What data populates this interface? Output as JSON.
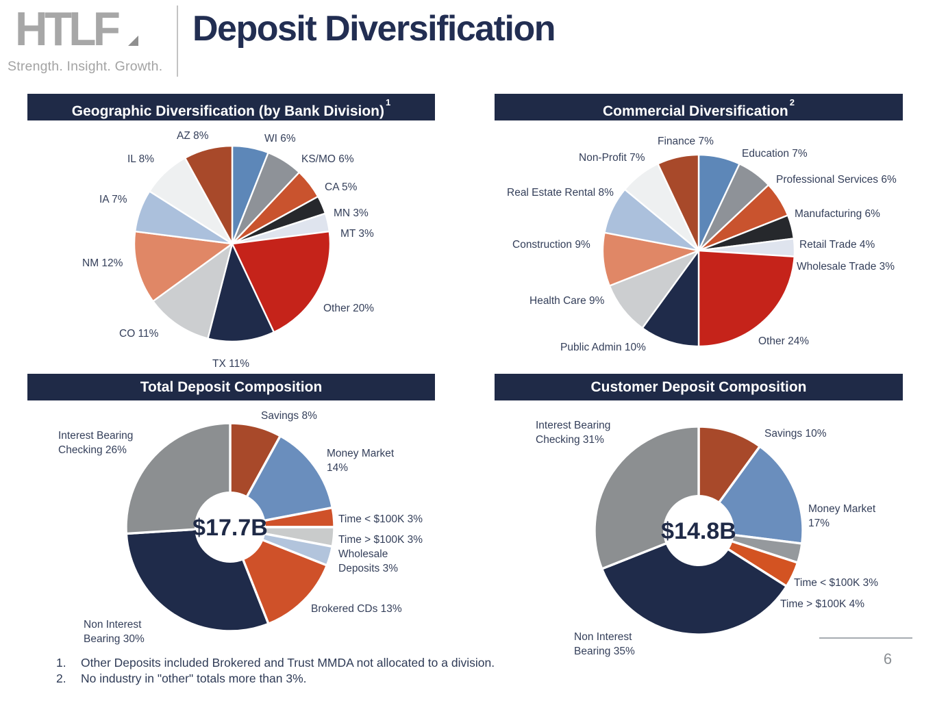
{
  "page": {
    "page_number": "6"
  },
  "header": {
    "logo_text": "HTLF",
    "tagline": "Strength. Insight. Growth.",
    "title": "Deposit Diversification"
  },
  "colors": {
    "panel_bar": "#1f2a47",
    "title_navy": "#222e52",
    "label_text": "#333e59",
    "slice_white_gap": "#ffffff"
  },
  "chart_data": [
    {
      "id": "geographic",
      "type": "pie",
      "donut": false,
      "title": "Geographic Diversification (by Bank Division)",
      "footnote_ref": "1",
      "slices": [
        {
          "label": "WI",
          "value": 6,
          "display": [
            "WI 6%"
          ],
          "color": "#5d87b8"
        },
        {
          "label": "KS/MO",
          "value": 6,
          "display": [
            "KS/MO 6%"
          ],
          "color": "#8e9298"
        },
        {
          "label": "CA",
          "value": 5,
          "display": [
            "CA 5%"
          ],
          "color": "#c9532e"
        },
        {
          "label": "MN",
          "value": 3,
          "display": [
            "MN 3%"
          ],
          "color": "#26282c"
        },
        {
          "label": "MT",
          "value": 3,
          "display": [
            "MT 3%"
          ],
          "color": "#dfe4ee"
        },
        {
          "label": "Other",
          "value": 20,
          "display": [
            "Other 20%"
          ],
          "color": "#c5231a"
        },
        {
          "label": "TX",
          "value": 11,
          "display": [
            "TX 11%"
          ],
          "color": "#1f2b4a"
        },
        {
          "label": "CO",
          "value": 11,
          "display": [
            "CO 11%"
          ],
          "color": "#ccced0"
        },
        {
          "label": "NM",
          "value": 12,
          "display": [
            "NM 12%"
          ],
          "color": "#e08766"
        },
        {
          "label": "IA",
          "value": 7,
          "display": [
            "IA 7%"
          ],
          "color": "#abc0dc"
        },
        {
          "label": "IL",
          "value": 8,
          "display": [
            "IL 8%"
          ],
          "color": "#eef0f1"
        },
        {
          "label": "AZ",
          "value": 8,
          "display": [
            "AZ 8%"
          ],
          "color": "#a8492a"
        }
      ]
    },
    {
      "id": "commercial",
      "type": "pie",
      "donut": false,
      "title": "Commercial Diversification",
      "footnote_ref": "2",
      "slices": [
        {
          "label": "Education",
          "value": 7,
          "display": [
            "Education 7%"
          ],
          "color": "#5d87b8"
        },
        {
          "label": "Professional Services",
          "value": 6,
          "display": [
            "Professional Services 6%"
          ],
          "color": "#8e9298"
        },
        {
          "label": "Manufacturing",
          "value": 6,
          "display": [
            "Manufacturing 6%"
          ],
          "color": "#c9532e"
        },
        {
          "label": "Retail Trade",
          "value": 4,
          "display": [
            "Retail Trade 4%"
          ],
          "color": "#26282c"
        },
        {
          "label": "Wholesale Trade",
          "value": 3,
          "display": [
            "Wholesale Trade 3%"
          ],
          "color": "#dfe4ee"
        },
        {
          "label": "Other",
          "value": 24,
          "display": [
            "Other 24%"
          ],
          "color": "#c5231a"
        },
        {
          "label": "Public Admin",
          "value": 10,
          "display": [
            "Public Admin 10%"
          ],
          "color": "#1f2b4a"
        },
        {
          "label": "Health Care",
          "value": 9,
          "display": [
            "Health Care 9%"
          ],
          "color": "#ccced0"
        },
        {
          "label": "Construction",
          "value": 9,
          "display": [
            "Construction 9%"
          ],
          "color": "#e08766"
        },
        {
          "label": "Real Estate Rental",
          "value": 8,
          "display": [
            "Real Estate Rental 8%"
          ],
          "color": "#abc0dc"
        },
        {
          "label": "Non-Profit",
          "value": 7,
          "display": [
            "Non-Profit 7%"
          ],
          "color": "#eef0f1"
        },
        {
          "label": "Finance",
          "value": 7,
          "display": [
            "Finance 7%"
          ],
          "color": "#a8492a"
        }
      ]
    },
    {
      "id": "total",
      "type": "pie",
      "donut": true,
      "title": "Total Deposit Composition",
      "footnote_ref": "",
      "center_label": "$17.7B",
      "slices": [
        {
          "label": "Savings",
          "value": 8,
          "display": [
            "Savings 8%"
          ],
          "color": "#a8492a"
        },
        {
          "label": "Money Market",
          "value": 14,
          "display": [
            "Money Market",
            "14%"
          ],
          "color": "#6a8ebd"
        },
        {
          "label": "Time < $100K",
          "value": 3,
          "display": [
            "Time < $100K 3%"
          ],
          "color": "#cf5129"
        },
        {
          "label": "Time > $100K",
          "value": 3,
          "display": [
            "Time > $100K 3%"
          ],
          "color": "#c9cbcb"
        },
        {
          "label": "Wholesale Deposits",
          "value": 3,
          "display": [
            "Wholesale",
            "Deposits 3%"
          ],
          "color": "#b2c4dc"
        },
        {
          "label": "Brokered CDs",
          "value": 13,
          "display": [
            "Brokered CDs 13%"
          ],
          "color": "#cf5129"
        },
        {
          "label": "Non Interest Bearing",
          "value": 30,
          "display": [
            "Non Interest",
            "Bearing 30%"
          ],
          "color": "#1f2b4a"
        },
        {
          "label": "Interest Bearing Checking",
          "value": 26,
          "display": [
            "Interest Bearing",
            "Checking 26%"
          ],
          "color": "#8c8f91"
        }
      ]
    },
    {
      "id": "customer",
      "type": "pie",
      "donut": true,
      "title": "Customer Deposit Composition",
      "footnote_ref": "",
      "center_label": "$14.8B",
      "slices": [
        {
          "label": "Savings",
          "value": 10,
          "display": [
            "Savings 10%"
          ],
          "color": "#a8492a"
        },
        {
          "label": "Money Market",
          "value": 17,
          "display": [
            "Money Market",
            "17%"
          ],
          "color": "#6a8ebd"
        },
        {
          "label": "Time < $100K",
          "value": 3,
          "display": [
            "Time < $100K 3%"
          ],
          "color": "#95999d"
        },
        {
          "label": "Time > $100K",
          "value": 4,
          "display": [
            "Time > $100K 4%"
          ],
          "color": "#d35322"
        },
        {
          "label": "Non Interest Bearing",
          "value": 35,
          "display": [
            "Non Interest",
            "Bearing 35%"
          ],
          "color": "#1f2b4a"
        },
        {
          "label": "Interest Bearing Checking",
          "value": 31,
          "display": [
            "Interest Bearing",
            "Checking 31%"
          ],
          "color": "#8c8f91"
        }
      ]
    }
  ],
  "footnotes": [
    {
      "num": "1.",
      "text": "Other Deposits included Brokered and Trust MMDA not allocated to a division."
    },
    {
      "num": "2.",
      "text": "No industry in \"other\" totals more than 3%."
    }
  ]
}
